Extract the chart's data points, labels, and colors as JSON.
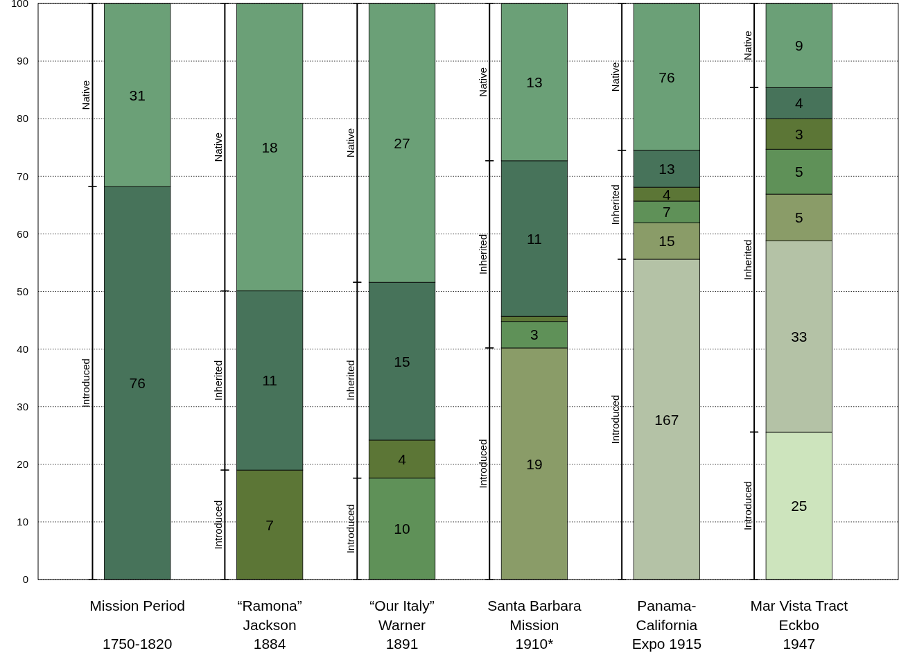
{
  "chart_data": {
    "type": "bar",
    "categories": [
      "Mission Period\n\n1750-1820",
      "“Ramona”\nJackson\n1884",
      "“Our Italy”\nWarner\n1891",
      "Santa Barbara\nMission\n1910*",
      "Panama-\nCalifornia\nExpo 1915",
      "Mar Vista Tract\nEckbo\n1947"
    ],
    "ylim": [
      0,
      100
    ],
    "yticks": [
      0,
      10,
      20,
      30,
      40,
      50,
      60,
      70,
      80,
      90,
      100
    ],
    "grid": "y",
    "series": [
      {
        "color": "#cde4bd",
        "base": [
          null,
          null,
          null,
          null,
          null,
          0
        ],
        "values": [
          null,
          null,
          null,
          null,
          null,
          25.6
        ]
      },
      {
        "color": "#b4c2a6",
        "base": [
          null,
          null,
          null,
          null,
          0,
          25.6
        ],
        "values": [
          null,
          null,
          null,
          null,
          55.6,
          33.2
        ]
      },
      {
        "color": "#8a9c68",
        "base": [
          null,
          null,
          null,
          0,
          55.6,
          58.8
        ],
        "values": [
          null,
          null,
          null,
          40.2,
          6.3,
          8.1
        ]
      },
      {
        "color": "#5f9158",
        "base": [
          null,
          null,
          0,
          40.2,
          61.9,
          66.9
        ],
        "values": [
          null,
          null,
          17.6,
          4.6,
          3.8,
          7.8
        ]
      },
      {
        "color": "#5c7636",
        "base": [
          null,
          0,
          17.6,
          44.8,
          65.7,
          74.7
        ],
        "values": [
          null,
          19.0,
          6.6,
          0.9,
          2.4,
          5.3
        ]
      },
      {
        "color": "#47735a",
        "base": [
          0,
          19.0,
          24.2,
          45.7,
          68.1,
          80.0
        ],
        "values": [
          68.2,
          31.1,
          27.4,
          27.0,
          6.4,
          5.4
        ]
      },
      {
        "color": "#6ba077",
        "base": [
          68.2,
          50.1,
          51.6,
          72.7,
          74.5,
          85.4
        ],
        "values": [
          31.8,
          49.9,
          48.4,
          27.3,
          25.5,
          14.6
        ]
      },
      {
        "name": "Introduced",
        "color": "#000000",
        "base": [
          0,
          0,
          0,
          0,
          0,
          0
        ],
        "values": [
          68.2,
          19.0,
          17.6,
          40.2,
          55.6,
          25.6
        ]
      },
      {
        "name": "Inherited",
        "color": "#000000",
        "base": [
          null,
          19.0,
          17.6,
          40.2,
          55.6,
          25.6
        ],
        "values": [
          null,
          31.1,
          34.0,
          32.5,
          18.9,
          59.8
        ]
      },
      {
        "name": "Native",
        "color": "#000000",
        "base": [
          68.2,
          50.1,
          51.6,
          72.7,
          74.5,
          85.4
        ],
        "values": [
          31.8,
          49.9,
          48.4,
          27.3,
          25.5,
          14.6
        ]
      }
    ],
    "annotations": [
      "76",
      "31",
      "7",
      "11",
      "18",
      "10",
      "4",
      "15",
      "27",
      "19",
      "3",
      "11",
      "13",
      "167",
      "15",
      "7",
      "4",
      "13",
      "76",
      "25",
      "33",
      "5",
      "5",
      "3",
      "4",
      "9"
    ]
  }
}
